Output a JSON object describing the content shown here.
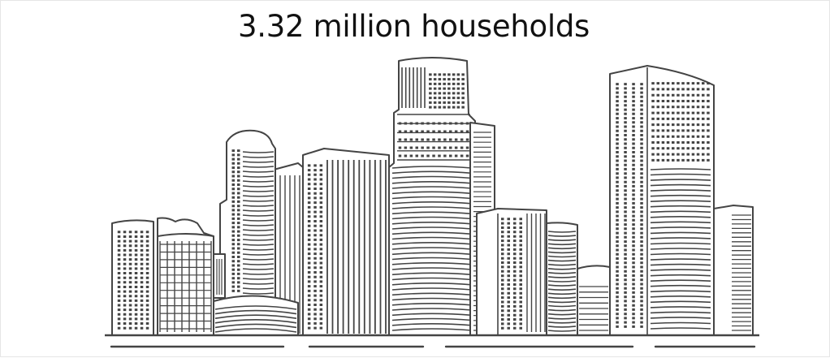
{
  "headline": {
    "text": "3.32 million households"
  },
  "illustration": {
    "icon": "city-skyline-icon",
    "stroke_color": "#444444",
    "background_color": "#ffffff"
  }
}
